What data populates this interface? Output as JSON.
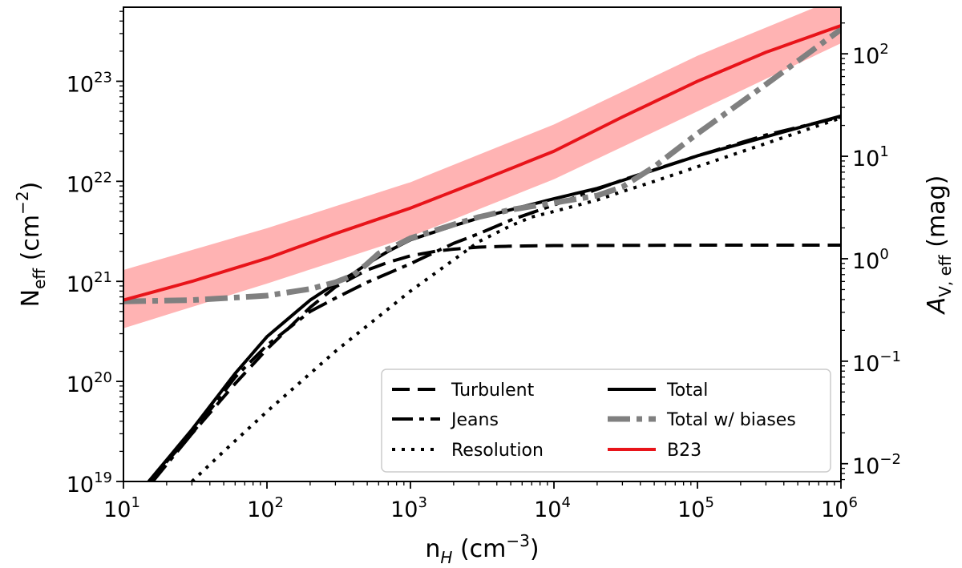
{
  "chart_data": {
    "type": "line",
    "xlabel": {
      "base": "n",
      "sub": "H",
      "rest": " (cm",
      "sup": "−3",
      "close": ")"
    },
    "ylabel": {
      "base": "N",
      "sub": "eff",
      "rest": " (cm",
      "sup": "−2",
      "close": ")"
    },
    "y2label": {
      "base": "A",
      "sub": "V, eff",
      "rest": " (mag)"
    },
    "xscale": "log",
    "yscale": "log",
    "xlim": [
      10,
      1000000
    ],
    "ylim": [
      1e+19,
      5.5e+23
    ],
    "y2lim": [
      0.0067,
      285
    ],
    "x_ticks": [
      {
        "value": 10,
        "base": "10",
        "exp": "1"
      },
      {
        "value": 100,
        "base": "10",
        "exp": "2"
      },
      {
        "value": 1000,
        "base": "10",
        "exp": "3"
      },
      {
        "value": 10000,
        "base": "10",
        "exp": "4"
      },
      {
        "value": 100000,
        "base": "10",
        "exp": "5"
      },
      {
        "value": 1000000,
        "base": "10",
        "exp": "6"
      }
    ],
    "y_ticks": [
      {
        "value": 1e+19,
        "base": "10",
        "exp": "19"
      },
      {
        "value": 1e+20,
        "base": "10",
        "exp": "20"
      },
      {
        "value": 1e+21,
        "base": "10",
        "exp": "21"
      },
      {
        "value": 1e+22,
        "base": "10",
        "exp": "22"
      },
      {
        "value": 1e+23,
        "base": "10",
        "exp": "23"
      }
    ],
    "y2_ticks": [
      {
        "value": 0.01,
        "base": "10",
        "exp": "−2"
      },
      {
        "value": 0.1,
        "base": "10",
        "exp": "−1"
      },
      {
        "value": 1,
        "base": "10",
        "exp": "0"
      },
      {
        "value": 10,
        "base": "10",
        "exp": "1"
      },
      {
        "value": 100,
        "base": "10",
        "exp": "2"
      }
    ],
    "band": {
      "name": "B23 uncertainty",
      "color": "#ffb3b3",
      "x": [
        10,
        100,
        1000,
        10000,
        100000,
        1000000
      ],
      "lower": [
        3.4e+20,
        9.5e+20,
        2.8e+21,
        1.05e+22,
        5e+22,
        2.4e+23
      ],
      "upper": [
        1.3e+21,
        3.4e+21,
        9.8e+21,
        3.7e+22,
        1.8e+23,
        7e+23
      ]
    },
    "series": [
      {
        "name": "Turbulent",
        "legend": "Turbulent",
        "color": "#000000",
        "width": 4,
        "dash": "22 10",
        "opacity": 1,
        "x": [
          15,
          30,
          60,
          100,
          200,
          300,
          400,
          500,
          700,
          1000,
          1500,
          2000,
          3000,
          5000,
          10000,
          100000,
          1000000
        ],
        "y": [
          1e+19,
          3e+19,
          9.5e+19,
          2.1e+20,
          5.5e+20,
          8.8e+20,
          1.1e+21,
          1.3e+21,
          1.55e+21,
          1.8e+21,
          2e+21,
          2.1e+21,
          2.2e+21,
          2.25e+21,
          2.28e+21,
          2.3e+21,
          2.3e+21
        ]
      },
      {
        "name": "Jeans",
        "legend": "Jeans",
        "color": "#000000",
        "width": 4,
        "dash": "26 8 6 8",
        "opacity": 1,
        "x": [
          16,
          30,
          60,
          100,
          200,
          300,
          500,
          1000,
          2000,
          3000,
          5000,
          10000,
          30000,
          100000,
          300000,
          1000000
        ],
        "y": [
          1e+19,
          3e+19,
          1.1e+20,
          2.3e+20,
          5e+20,
          6.8e+20,
          9.8e+20,
          1.5e+21,
          2.4e+21,
          3e+21,
          4.1e+21,
          5.8e+21,
          1.03e+22,
          1.8e+22,
          2.9e+22,
          4.4e+22
        ]
      },
      {
        "name": "Resolution",
        "legend": "Resolution",
        "color": "#000000",
        "width": 4,
        "dash": "4 8",
        "opacity": 1,
        "x": [
          30,
          50,
          100,
          300,
          1000,
          3000,
          5000,
          7000,
          10000,
          20000,
          30000,
          50000,
          100000,
          1000000
        ],
        "y": [
          1e+19,
          2e+19,
          5e+19,
          2e+20,
          8e+20,
          2.5e+21,
          3.6e+21,
          4.4e+21,
          5e+21,
          6.5e+21,
          7.9e+21,
          1e+22,
          1.4e+22,
          4.3e+22
        ]
      },
      {
        "name": "Total",
        "legend": "Total",
        "color": "#000000",
        "width": 4,
        "dash": "",
        "opacity": 1,
        "x": [
          15,
          30,
          60,
          100,
          200,
          300,
          400,
          500,
          700,
          1000,
          2000,
          3000,
          5000,
          10000,
          20000,
          30000,
          100000,
          1000000
        ],
        "y": [
          1e+19,
          3.3e+19,
          1.2e+20,
          2.8e+20,
          6.5e+20,
          9.5e+20,
          1.2e+21,
          1.5e+21,
          2e+21,
          2.6e+21,
          3.6e+21,
          4.3e+21,
          5.2e+21,
          6.7e+21,
          8.5e+21,
          1.02e+22,
          1.8e+22,
          4.5e+22
        ]
      },
      {
        "name": "Total w/ biases",
        "legend": "Total w/ biases",
        "color": "#808080",
        "width": 7,
        "dash": "28 8 7 8",
        "opacity": 1,
        "x": [
          10,
          30,
          100,
          200,
          300,
          400,
          500,
          600,
          800,
          1000,
          2000,
          3000,
          5000,
          10000,
          20000,
          30000,
          50000,
          100000,
          300000,
          1000000
        ],
        "y": [
          6.3e+20,
          6.5e+20,
          7.2e+20,
          8.4e+20,
          9.8e+20,
          1.15e+21,
          1.5e+21,
          1.9e+21,
          2.3e+21,
          2.7e+21,
          3.7e+21,
          4.4e+21,
          5.2e+21,
          6.1e+21,
          7.2e+21,
          8.8e+21,
          1.4e+22,
          3e+22,
          9.3e+22,
          3.3e+23
        ]
      },
      {
        "name": "B23",
        "legend": "B23",
        "color": "#e8141a",
        "width": 4,
        "dash": "",
        "opacity": 1,
        "x": [
          10,
          30,
          100,
          300,
          1000,
          3000,
          10000,
          30000,
          100000,
          300000,
          1000000
        ],
        "y": [
          6.5e+20,
          1e+21,
          1.7e+21,
          3e+21,
          5.4e+21,
          1e+22,
          2e+22,
          4.4e+22,
          1e+23,
          1.95e+23,
          3.6e+23
        ]
      }
    ],
    "legend": {
      "position": "lower-right",
      "columns": [
        [
          "Turbulent",
          "Jeans",
          "Resolution"
        ],
        [
          "Total",
          "Total w/ biases",
          "B23"
        ]
      ]
    }
  }
}
